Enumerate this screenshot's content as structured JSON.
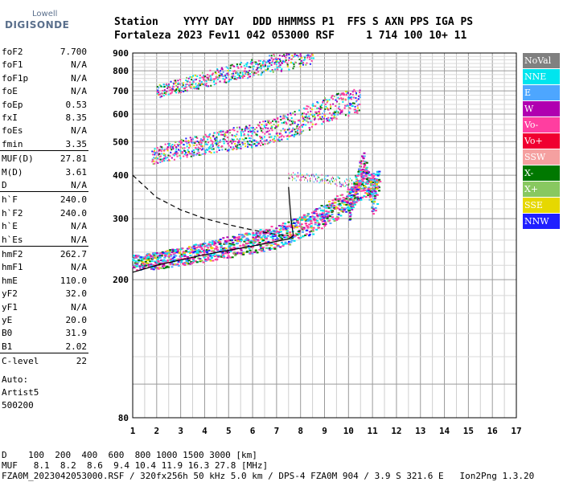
{
  "logo": {
    "top": "Lowell",
    "main": "DIGISONDE"
  },
  "header": {
    "line1": "Station    YYYY DAY   DDD HHMMSS P1  FFS S AXN PPS IGA PS",
    "line2": "Fortaleza 2023 Fev11 042 053000 RSF     1 714 100 10+ 11"
  },
  "params": [
    {
      "name": "foF2",
      "value": "7.700"
    },
    {
      "name": "foF1",
      "value": "N/A"
    },
    {
      "name": "foF1p",
      "value": "N/A"
    },
    {
      "name": "foE",
      "value": "N/A"
    },
    {
      "name": "foEp",
      "value": "0.53"
    },
    {
      "name": "fxI",
      "value": "8.35"
    },
    {
      "name": "foEs",
      "value": "N/A"
    },
    {
      "name": "fmin",
      "value": "3.35"
    },
    {
      "name": "MUF(D)",
      "value": "27.81"
    },
    {
      "name": "M(D)",
      "value": "3.61"
    },
    {
      "name": "D",
      "value": "N/A"
    },
    {
      "name": "h`F",
      "value": "240.0"
    },
    {
      "name": "h`F2",
      "value": "240.0"
    },
    {
      "name": "h`E",
      "value": "N/A"
    },
    {
      "name": "h`Es",
      "value": "N/A"
    },
    {
      "name": "hmF2",
      "value": "262.7"
    },
    {
      "name": "hmF1",
      "value": "N/A"
    },
    {
      "name": "hmE",
      "value": "110.0"
    },
    {
      "name": "yF2",
      "value": "32.0"
    },
    {
      "name": "yF1",
      "value": "N/A"
    },
    {
      "name": "yE",
      "value": "20.0"
    },
    {
      "name": "B0",
      "value": "31.9"
    },
    {
      "name": "B1",
      "value": "2.02"
    },
    {
      "name": "C-level",
      "value": "22"
    }
  ],
  "auto": {
    "line1": "Auto:",
    "line2": "Artist5",
    "line3": "500200"
  },
  "legend": [
    {
      "label": "NoVal",
      "color": "#808080"
    },
    {
      "label": "NNE",
      "color": "#00e5ee"
    },
    {
      "label": "E",
      "color": "#4da6ff"
    },
    {
      "label": "W",
      "color": "#b000b0"
    },
    {
      "label": "Vo-",
      "color": "#ff3ea0"
    },
    {
      "label": "Vo+",
      "color": "#f00030"
    },
    {
      "label": "SSW",
      "color": "#f5a0a0"
    },
    {
      "label": "X-",
      "color": "#007800"
    },
    {
      "label": "X+",
      "color": "#88c860"
    },
    {
      "label": "SSE",
      "color": "#e6d800"
    },
    {
      "label": "NNW",
      "color": "#2020ff"
    }
  ],
  "footer": {
    "line1": "D    100  200  400  600  800 1000 1500 3000 [km]",
    "line2": "MUF   8.1  8.2  8.6  9.4 10.4 11.9 16.3 27.8 [MHz]",
    "line3": "FZA0M_2023042053000.RSF / 320fx256h 50 kHz 5.0 km / DPS-4 FZA0M 904 / 3.9 S 321.6 E   Ion2Png 1.3.20"
  },
  "chart_data": {
    "type": "scatter",
    "title": "",
    "xlabel": "",
    "ylabel": "",
    "xlim": [
      1,
      17
    ],
    "ylim": [
      80,
      900
    ],
    "x_ticks": [
      1,
      2,
      3,
      4,
      5,
      6,
      7,
      8,
      9,
      10,
      11,
      12,
      13,
      14,
      15,
      16,
      17
    ],
    "y_ticks": [
      80,
      200,
      300,
      400,
      500,
      600,
      700,
      800,
      900
    ],
    "y_scale": "log",
    "grid": true,
    "legend_placement": "right",
    "traces": [
      {
        "name": "F 1st hop",
        "x": [
          1.0,
          2.0,
          3.0,
          4.0,
          5.0,
          6.0,
          7.0,
          7.5,
          8.0,
          8.5,
          9.0,
          9.5,
          10.0,
          10.5,
          11.0,
          11.3
        ],
        "y": [
          225,
          228,
          235,
          242,
          250,
          258,
          268,
          275,
          285,
          295,
          310,
          325,
          345,
          365,
          380,
          390
        ]
      },
      {
        "name": "F 2nd hop",
        "x": [
          1.8,
          2.5,
          3.0,
          4.0,
          5.0,
          6.0,
          7.0,
          8.0,
          8.5,
          9.0,
          9.5,
          10.0,
          10.5
        ],
        "y": [
          455,
          470,
          480,
          495,
          510,
          525,
          545,
          575,
          600,
          620,
          640,
          650,
          660
        ]
      },
      {
        "name": "F 3rd hop",
        "x": [
          2.0,
          3.0,
          4.0,
          5.0,
          6.0,
          7.0,
          8.0,
          8.5
        ],
        "y": [
          700,
          730,
          760,
          790,
          820,
          850,
          880,
          900
        ]
      },
      {
        "name": "Es",
        "x": [
          7.5,
          8.5,
          9.0,
          9.5,
          10.0,
          10.5
        ],
        "y": [
          400,
          395,
          390,
          385,
          380,
          375
        ]
      },
      {
        "name": "spread",
        "x": [
          10.0,
          10.2,
          10.4,
          10.6,
          10.8,
          11.0,
          11.2
        ],
        "y": [
          320,
          360,
          400,
          440,
          380,
          340,
          360
        ]
      }
    ],
    "profile": {
      "name": "Electron density profile",
      "x": [
        1.0,
        2.0,
        3.0,
        4.0,
        5.0,
        6.0,
        7.0,
        7.5,
        7.7,
        7.6,
        7.5
      ],
      "y": [
        210,
        220,
        228,
        236,
        243,
        250,
        258,
        262,
        268,
        300,
        370
      ]
    },
    "dashed_profile": {
      "name": "model profile",
      "x": [
        1.0,
        2.0,
        3.0,
        4.0,
        5.0,
        6.0,
        7.0,
        7.5
      ],
      "y": [
        400,
        345,
        318,
        300,
        288,
        278,
        270,
        268
      ]
    }
  }
}
